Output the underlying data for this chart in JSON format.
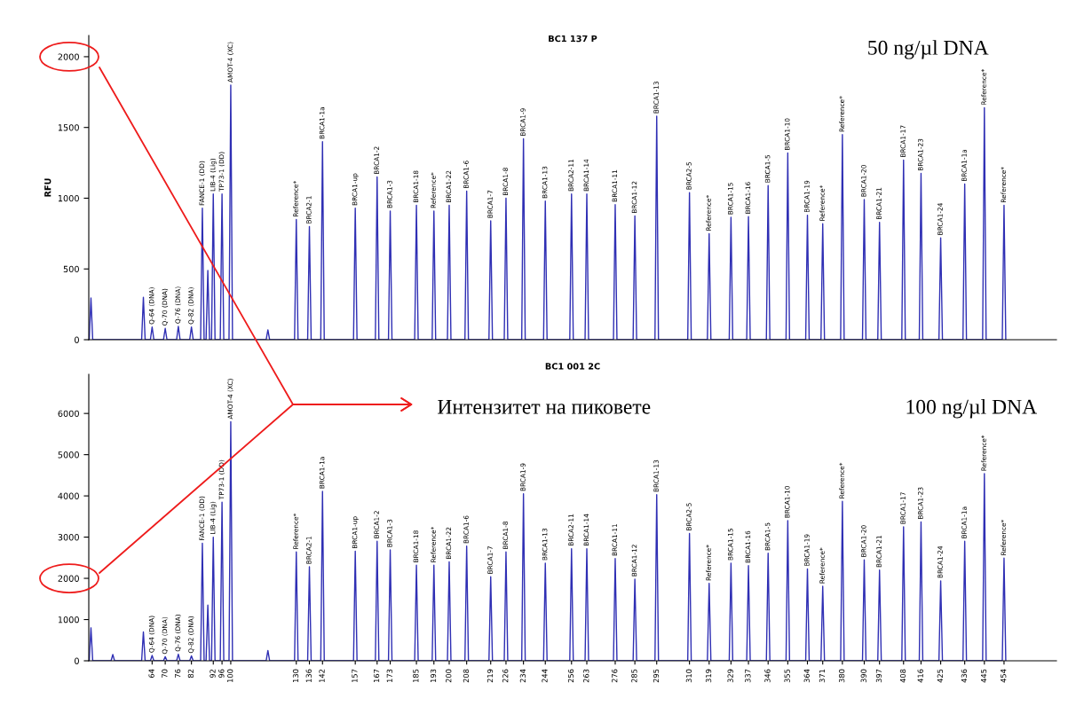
{
  "chart_data": [
    {
      "type": "line",
      "title": "BC1 137 P",
      "ylabel": "RFU",
      "series": [
        {
          "color": "#2f2fb4",
          "x": [
            35.2,
            36,
            36.8,
            59.2,
            60,
            60.8,
            63.2,
            64,
            64.8,
            69.2,
            70,
            70.8,
            75.2,
            76,
            76.8,
            81.2,
            82,
            82.8,
            86.2,
            87,
            87.8,
            88.7,
            89.5,
            90.3,
            91.2,
            92,
            92.8,
            95.2,
            96,
            96.8,
            99.2,
            100,
            100.8,
            116.2,
            117,
            117.8,
            129.2,
            130,
            130.8,
            135.2,
            136,
            136.8,
            141.2,
            142,
            142.8,
            156.2,
            157,
            157.8,
            166.2,
            167,
            167.8,
            172.2,
            173,
            173.8,
            184.2,
            185,
            185.8,
            192.2,
            193,
            193.8,
            199.2,
            200,
            200.8,
            207.2,
            208,
            208.8,
            218.2,
            219,
            219.8,
            225.2,
            226,
            226.8,
            233.2,
            234,
            234.8,
            243.2,
            244,
            244.8,
            255.2,
            256,
            256.8,
            262.2,
            263,
            263.8,
            275.2,
            276,
            276.8,
            284.2,
            285,
            285.8,
            294.2,
            295,
            295.8,
            309.2,
            310,
            310.8,
            318.2,
            319,
            319.8,
            328.2,
            329,
            329.8,
            336.2,
            337,
            337.8,
            345.2,
            346,
            346.8,
            354.2,
            355,
            355.8,
            363.2,
            364,
            364.8,
            370.2,
            371,
            371.8,
            379.2,
            380,
            380.8,
            389.2,
            390,
            390.8,
            396.2,
            397,
            397.8,
            407.2,
            408,
            408.8,
            415.2,
            416,
            416.8,
            424.2,
            425,
            425.8,
            435.2,
            436,
            436.8,
            444.2,
            445,
            445.8,
            453.2,
            454,
            454.8
          ],
          "values": [
            0,
            295,
            0,
            0,
            300,
            0,
            0,
            90,
            0,
            0,
            80,
            0,
            0,
            95,
            0,
            0,
            90,
            0,
            0,
            930,
            0,
            0,
            490,
            0,
            0,
            1030,
            0,
            0,
            1030,
            0,
            0,
            1800,
            0,
            0,
            70,
            0,
            0,
            850,
            0,
            0,
            800,
            0,
            0,
            1400,
            0,
            0,
            930,
            0,
            0,
            1150,
            0,
            0,
            910,
            0,
            0,
            950,
            0,
            0,
            910,
            0,
            0,
            950,
            0,
            0,
            1050,
            0,
            0,
            840,
            0,
            0,
            1000,
            0,
            0,
            1420,
            0,
            0,
            980,
            0,
            0,
            1030,
            0,
            0,
            1030,
            0,
            0,
            955,
            0,
            0,
            875,
            0,
            0,
            1580,
            0,
            0,
            1040,
            0,
            0,
            750,
            0,
            0,
            865,
            0,
            0,
            870,
            0,
            0,
            1090,
            0,
            0,
            1320,
            0,
            0,
            880,
            0,
            0,
            820,
            0,
            0,
            1450,
            0,
            0,
            990,
            0,
            0,
            830,
            0,
            0,
            1270,
            0,
            0,
            1175,
            0,
            0,
            720,
            0,
            0,
            1100,
            0,
            0,
            1640,
            0,
            0,
            950,
            0
          ]
        }
      ],
      "xlim": [
        35,
        478
      ],
      "ylim": [
        0,
        2150
      ],
      "yticks": [
        0,
        500,
        1000,
        1500,
        2000
      ],
      "tick_labels": "y",
      "grid": false,
      "marker": "none",
      "line_style": "solid",
      "annotations": [
        "50 ng/µl DNA",
        {
          "text": "Q-64 (DNA)",
          "x": 64,
          "y": 90
        },
        {
          "text": "Q-70 (DNA)",
          "x": 70,
          "y": 80
        },
        {
          "text": "Q-76 (DNA)",
          "x": 76,
          "y": 95
        },
        {
          "text": "Q-82 (DNA)",
          "x": 82,
          "y": 90
        },
        {
          "text": "FANCE-1 (DD)",
          "x": 87,
          "y": 930
        },
        {
          "text": "LIB-4 (Lig)",
          "x": 92,
          "y": 1030
        },
        {
          "text": "TP73-1 (DD)",
          "x": 96,
          "y": 1030
        },
        {
          "text": "AMOT-4 (XC)",
          "x": 100,
          "y": 1800
        },
        {
          "text": "Reference*",
          "x": 130,
          "y": 850
        },
        {
          "text": "BRCA2-1",
          "x": 136,
          "y": 800
        },
        {
          "text": "BRCA1-1a",
          "x": 142,
          "y": 1400
        },
        {
          "text": "BRCA1-up",
          "x": 157,
          "y": 930
        },
        {
          "text": "BRCA1-2",
          "x": 167,
          "y": 1150
        },
        {
          "text": "BRCA1-3",
          "x": 173,
          "y": 910
        },
        {
          "text": "BRCA1-18",
          "x": 185,
          "y": 950
        },
        {
          "text": "Reference*",
          "x": 193,
          "y": 910
        },
        {
          "text": "BRCA1-22",
          "x": 200,
          "y": 950
        },
        {
          "text": "BRCA1-6",
          "x": 208,
          "y": 1050
        },
        {
          "text": "BRCA1-7",
          "x": 219,
          "y": 840
        },
        {
          "text": "BRCA1-8",
          "x": 226,
          "y": 1000
        },
        {
          "text": "BRCA1-9",
          "x": 234,
          "y": 1420
        },
        {
          "text": "BRCA1-13",
          "x": 244,
          "y": 980
        },
        {
          "text": "BRCA2-11",
          "x": 256,
          "y": 1030
        },
        {
          "text": "BRCA1-14",
          "x": 263,
          "y": 1030
        },
        {
          "text": "BRCA1-11",
          "x": 276,
          "y": 955
        },
        {
          "text": "BRCA1-12",
          "x": 285,
          "y": 875
        },
        {
          "text": "BRCA1-13",
          "x": 295,
          "y": 1580
        },
        {
          "text": "BRCA2-5",
          "x": 310,
          "y": 1040
        },
        {
          "text": "Reference*",
          "x": 319,
          "y": 750
        },
        {
          "text": "BRCA1-15",
          "x": 329,
          "y": 865
        },
        {
          "text": "BRCA1-16",
          "x": 337,
          "y": 870
        },
        {
          "text": "BRCA1-5",
          "x": 346,
          "y": 1090
        },
        {
          "text": "BRCA1-10",
          "x": 355,
          "y": 1320
        },
        {
          "text": "BRCA1-19",
          "x": 364,
          "y": 880
        },
        {
          "text": "Reference*",
          "x": 371,
          "y": 820
        },
        {
          "text": "Reference*",
          "x": 380,
          "y": 1450
        },
        {
          "text": "BRCA1-20",
          "x": 390,
          "y": 990
        },
        {
          "text": "BRCA1-21",
          "x": 397,
          "y": 830
        },
        {
          "text": "BRCA1-17",
          "x": 408,
          "y": 1270
        },
        {
          "text": "BRCA1-23",
          "x": 416,
          "y": 1175
        },
        {
          "text": "BRCA1-24",
          "x": 425,
          "y": 720
        },
        {
          "text": "BRCA1-1a",
          "x": 436,
          "y": 1100
        },
        {
          "text": "Reference*",
          "x": 445,
          "y": 1640
        },
        {
          "text": "Reference*",
          "x": 454,
          "y": 950
        }
      ]
    },
    {
      "type": "line",
      "title": "BC1 001 2C",
      "series": [
        {
          "color": "#2f2fb4",
          "x": [
            35.2,
            36,
            36.8,
            45.2,
            46,
            46.8,
            59.2,
            60,
            60.8,
            63.2,
            64,
            64.8,
            69.2,
            70,
            70.8,
            75.2,
            76,
            76.8,
            81.2,
            82,
            82.8,
            86.2,
            87,
            87.8,
            88.7,
            89.5,
            90.3,
            91.2,
            92,
            92.8,
            95.2,
            96,
            96.8,
            99.2,
            100,
            100.8,
            116.2,
            117,
            117.8,
            129.2,
            130,
            130.8,
            135.2,
            136,
            136.8,
            141.2,
            142,
            142.8,
            156.2,
            157,
            157.8,
            166.2,
            167,
            167.8,
            172.2,
            173,
            173.8,
            184.2,
            185,
            185.8,
            192.2,
            193,
            193.8,
            199.2,
            200,
            200.8,
            207.2,
            208,
            208.8,
            218.2,
            219,
            219.8,
            225.2,
            226,
            226.8,
            233.2,
            234,
            234.8,
            243.2,
            244,
            244.8,
            255.2,
            256,
            256.8,
            262.2,
            263,
            263.8,
            275.2,
            276,
            276.8,
            284.2,
            285,
            285.8,
            294.2,
            295,
            295.8,
            309.2,
            310,
            310.8,
            318.2,
            319,
            319.8,
            328.2,
            329,
            329.8,
            336.2,
            337,
            337.8,
            345.2,
            346,
            346.8,
            354.2,
            355,
            355.8,
            363.2,
            364,
            364.8,
            370.2,
            371,
            371.8,
            379.2,
            380,
            380.8,
            389.2,
            390,
            390.8,
            396.2,
            397,
            397.8,
            407.2,
            408,
            408.8,
            415.2,
            416,
            416.8,
            424.2,
            425,
            425.8,
            435.2,
            436,
            436.8,
            444.2,
            445,
            445.8,
            453.2,
            454,
            454.8
          ],
          "values": [
            0,
            800,
            0,
            0,
            150,
            0,
            0,
            700,
            0,
            0,
            130,
            0,
            0,
            100,
            0,
            0,
            160,
            0,
            0,
            120,
            0,
            0,
            2850,
            0,
            0,
            1350,
            0,
            0,
            3000,
            0,
            0,
            3850,
            0,
            0,
            5800,
            0,
            0,
            250,
            0,
            0,
            2640,
            0,
            0,
            2280,
            0,
            0,
            4110,
            0,
            0,
            2660,
            0,
            0,
            2900,
            0,
            0,
            2690,
            0,
            0,
            2320,
            0,
            0,
            2320,
            0,
            0,
            2400,
            0,
            0,
            2780,
            0,
            0,
            2040,
            0,
            0,
            2640,
            0,
            0,
            4050,
            0,
            0,
            2370,
            0,
            0,
            2720,
            0,
            0,
            2720,
            0,
            0,
            2480,
            0,
            0,
            1980,
            0,
            0,
            4030,
            0,
            0,
            3090,
            0,
            0,
            1880,
            0,
            0,
            2370,
            0,
            0,
            2310,
            0,
            0,
            2610,
            0,
            0,
            3400,
            0,
            0,
            2230,
            0,
            0,
            1810,
            0,
            0,
            3870,
            0,
            0,
            2450,
            0,
            0,
            2200,
            0,
            0,
            3250,
            0,
            0,
            3370,
            0,
            0,
            1940,
            0,
            0,
            2900,
            0,
            0,
            4540,
            0,
            0,
            2490,
            0
          ]
        }
      ],
      "xlim": [
        35,
        478
      ],
      "ylim": [
        0,
        6950
      ],
      "yticks": [
        0,
        1000,
        2000,
        3000,
        4000,
        5000,
        6000
      ],
      "xticks": [
        64,
        70,
        76,
        82,
        92,
        96,
        100,
        130,
        136,
        142,
        157,
        167,
        173,
        185,
        193,
        200,
        208,
        219,
        226,
        234,
        244,
        256,
        263,
        276,
        285,
        295,
        310,
        319,
        329,
        337,
        346,
        355,
        364,
        371,
        380,
        390,
        397,
        408,
        416,
        425,
        436,
        445,
        454
      ],
      "grid": false,
      "marker": "none",
      "line_style": "solid",
      "annotations": [
        "Интензитет на пиковете",
        "100 ng/µl DNA",
        {
          "text": "Q-64 (DNA)",
          "x": 64,
          "y": 130
        },
        {
          "text": "Q-70 (DNA)",
          "x": 70,
          "y": 100
        },
        {
          "text": "Q-76 (DNA)",
          "x": 76,
          "y": 160
        },
        {
          "text": "Q-82 (DNA)",
          "x": 82,
          "y": 120
        },
        {
          "text": "FANCE-1 (DD)",
          "x": 87,
          "y": 2850
        },
        {
          "text": "LIB-4 (Lig)",
          "x": 92,
          "y": 3000
        },
        {
          "text": "TP73-1 (DD)",
          "x": 96,
          "y": 3850
        },
        {
          "text": "AMOT-4 (XC)",
          "x": 100,
          "y": 5800
        },
        {
          "text": "Reference*",
          "x": 130,
          "y": 2640
        },
        {
          "text": "BRCA2-1",
          "x": 136,
          "y": 2280
        },
        {
          "text": "BRCA1-1a",
          "x": 142,
          "y": 4110
        },
        {
          "text": "BRCA1-up",
          "x": 157,
          "y": 2660
        },
        {
          "text": "BRCA1-2",
          "x": 167,
          "y": 2900
        },
        {
          "text": "BRCA1-3",
          "x": 173,
          "y": 2690
        },
        {
          "text": "BRCA1-18",
          "x": 185,
          "y": 2320
        },
        {
          "text": "Reference*",
          "x": 193,
          "y": 2320
        },
        {
          "text": "BRCA1-22",
          "x": 200,
          "y": 2400
        },
        {
          "text": "BRCA1-6",
          "x": 208,
          "y": 2780
        },
        {
          "text": "BRCA1-7",
          "x": 219,
          "y": 2040
        },
        {
          "text": "BRCA1-8",
          "x": 226,
          "y": 2640
        },
        {
          "text": "BRCA1-9",
          "x": 234,
          "y": 4050
        },
        {
          "text": "BRCA1-13",
          "x": 244,
          "y": 2370
        },
        {
          "text": "BRCA2-11",
          "x": 256,
          "y": 2720
        },
        {
          "text": "BRCA1-14",
          "x": 263,
          "y": 2720
        },
        {
          "text": "BRCA1-11",
          "x": 276,
          "y": 2480
        },
        {
          "text": "BRCA1-12",
          "x": 285,
          "y": 1980
        },
        {
          "text": "BRCA1-13",
          "x": 295,
          "y": 4030
        },
        {
          "text": "BRCA2-5",
          "x": 310,
          "y": 3090
        },
        {
          "text": "Reference*",
          "x": 319,
          "y": 1880
        },
        {
          "text": "BRCA1-15",
          "x": 329,
          "y": 2370
        },
        {
          "text": "BRCA1-16",
          "x": 337,
          "y": 2310
        },
        {
          "text": "BRCA1-5",
          "x": 346,
          "y": 2610
        },
        {
          "text": "BRCA1-10",
          "x": 355,
          "y": 3400
        },
        {
          "text": "BRCA1-19",
          "x": 364,
          "y": 2230
        },
        {
          "text": "Reference*",
          "x": 371,
          "y": 1810
        },
        {
          "text": "Reference*",
          "x": 380,
          "y": 3870
        },
        {
          "text": "BRCA1-20",
          "x": 390,
          "y": 2450
        },
        {
          "text": "BRCA1-21",
          "x": 397,
          "y": 2200
        },
        {
          "text": "BRCA1-17",
          "x": 408,
          "y": 3250
        },
        {
          "text": "BRCA1-23",
          "x": 416,
          "y": 3370
        },
        {
          "text": "BRCA1-24",
          "x": 425,
          "y": 1940
        },
        {
          "text": "BRCA1-1a",
          "x": 436,
          "y": 2900
        },
        {
          "text": "Reference*",
          "x": 445,
          "y": 4540
        },
        {
          "text": "Reference*",
          "x": 454,
          "y": 2490
        }
      ]
    }
  ]
}
